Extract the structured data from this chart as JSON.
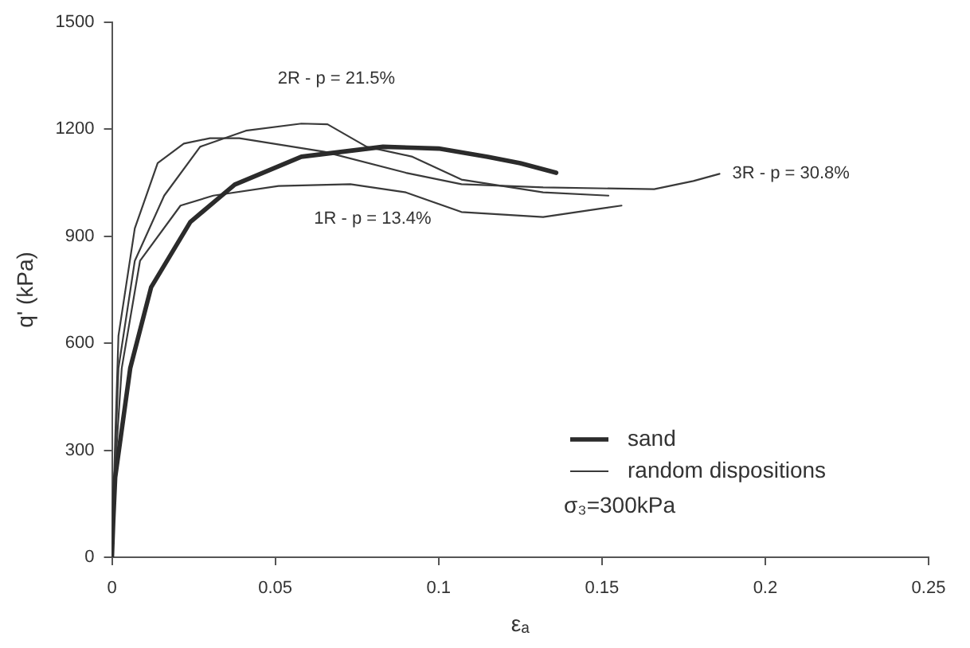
{
  "chart_data": {
    "type": "line",
    "xlabel": "εₐ",
    "ylabel": "q' (kPa)",
    "xlim": [
      0,
      0.25
    ],
    "xticks": [
      0,
      0.05,
      0.1,
      0.15,
      0.2,
      0.25
    ],
    "ylim": [
      0,
      1500
    ],
    "yticks": [
      0,
      300,
      600,
      900,
      1200,
      1500
    ],
    "grid": false,
    "legend": "bottom right",
    "marker": "none",
    "line_style": "solid",
    "series": [
      {
        "name": "sand",
        "color": "#2b2b2b",
        "x": [
          0,
          0.0004,
          0.001,
          0.0056,
          0.012,
          0.024,
          0.0376,
          0.058,
          0.083,
          0.1,
          0.115,
          0.125,
          0.136
        ],
        "values": [
          0,
          100,
          224,
          530,
          757,
          940,
          1045,
          1123,
          1151,
          1146,
          1123,
          1105,
          1078
        ]
      },
      {
        "name": "random dispositions",
        "color": "#3a3a3a",
        "x": [
          0,
          0.001,
          0.003,
          0.0086,
          0.021,
          0.031,
          0.051,
          0.073,
          0.09,
          0.107,
          0.132,
          0.149,
          0.156
        ],
        "values": [
          0,
          250,
          530,
          831,
          986,
          1014,
          1041,
          1046,
          1023,
          968,
          954,
          977,
          986
        ]
      },
      {
        "color": "#3a3a3a",
        "x": [
          0,
          0.001,
          0.002,
          0.007,
          0.016,
          0.027,
          0.041,
          0.058,
          0.066,
          0.078,
          0.092,
          0.107,
          0.132,
          0.152
        ],
        "values": [
          0,
          280,
          530,
          831,
          1014,
          1151,
          1196,
          1216,
          1214,
          1151,
          1123,
          1059,
          1023,
          1014
        ]
      },
      {
        "color": "#3a3a3a",
        "x": [
          0,
          0.001,
          0.002,
          0.007,
          0.014,
          0.022,
          0.03,
          0.039,
          0.065,
          0.09,
          0.107,
          0.132,
          0.166,
          0.178,
          0.186
        ],
        "values": [
          0,
          330,
          621,
          922,
          1105,
          1160,
          1175,
          1175,
          1137,
          1078,
          1046,
          1037,
          1032,
          1055,
          1075
        ]
      }
    ],
    "annotations": [
      {
        "text": "2R - p = 21.5%",
        "x": 0.058,
        "y": 1216
      },
      {
        "text": "1R - p = 13.4%",
        "x": 0.073,
        "y": 1046
      },
      {
        "text": "3R - p = 30.8%",
        "x": 0.186,
        "y": 1075
      },
      "σ₃=300kPa"
    ]
  }
}
